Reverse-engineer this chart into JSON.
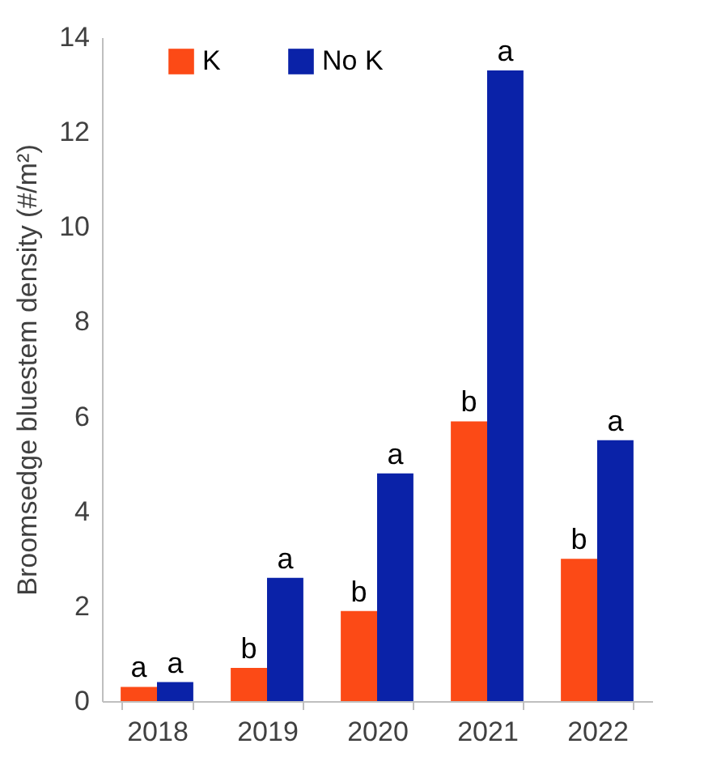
{
  "chart_data": {
    "type": "bar",
    "ylabel": "Broomsedge bluestem density (#/m²)",
    "categories": [
      "2018",
      "2019",
      "2020",
      "2021",
      "2022"
    ],
    "series": [
      {
        "name": "K",
        "color": "#fc4a16",
        "values": [
          0.3,
          0.7,
          1.9,
          5.9,
          3.0
        ],
        "value_labels": [
          "a",
          "b",
          "b",
          "b",
          "b"
        ]
      },
      {
        "name": "No K",
        "color": "#0a22a8",
        "values": [
          0.4,
          2.6,
          4.8,
          13.3,
          5.5
        ],
        "value_labels": [
          "a",
          "a",
          "a",
          "a",
          "a"
        ]
      }
    ],
    "ylim": [
      0,
      14
    ],
    "yticks": [
      0,
      2,
      4,
      6,
      8,
      10,
      12,
      14
    ],
    "grid": false,
    "legend": "top left"
  }
}
